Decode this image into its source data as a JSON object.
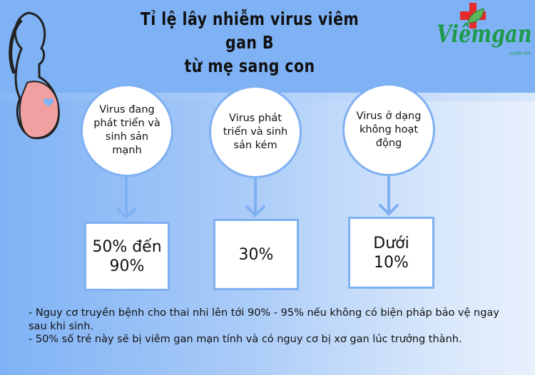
{
  "title": {
    "line1": "Tỉ lệ lây nhiễm virus viêm gan B",
    "line2": "từ mẹ sang con"
  },
  "logo": {
    "name": "Viêmgan",
    "domain": ".com.vn",
    "colors": {
      "cross": "#e52b2b",
      "leaf": "#5cb85c",
      "text": "#1e9a4a"
    }
  },
  "stages": [
    {
      "condition": "Virus đang phát triển và sinh sản mạnh",
      "rate": "50% đến 90%"
    },
    {
      "condition": "Virus phát triển và sinh sản kém",
      "rate": "30%"
    },
    {
      "condition": "Virus ở dạng không hoạt động",
      "rate": "Dưới 10%"
    }
  ],
  "notes": [
    "- Nguy cơ truyền bệnh cho thai nhi lên tới 90% - 95% nếu không có biện pháp bảo vệ ngay sau khi sinh.",
    "- 50% số trẻ này sẽ bị viêm gan mạn tính và có nguy cơ bị xơ gan lúc trưởng thành."
  ],
  "colors": {
    "header": "#7fb2f5",
    "accent": "#7fb0f2"
  }
}
